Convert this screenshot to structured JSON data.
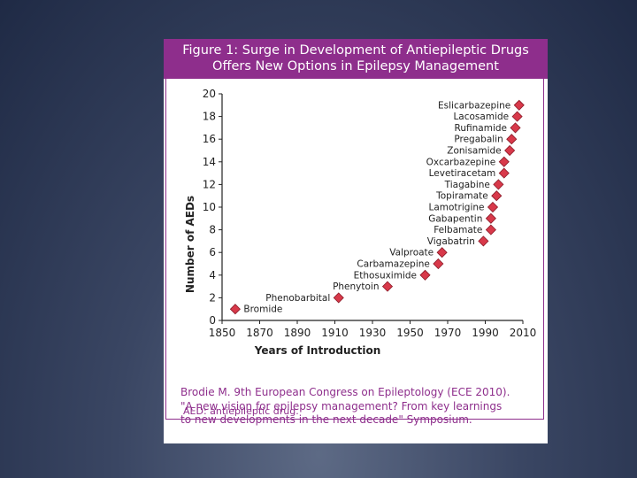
{
  "figure": {
    "title_line1": "Figure 1: Surge in Development of Antiepileptic Drugs",
    "title_line2": "Offers New Options in Epilepsy Management",
    "footnote": "AED: antiepileptic drug.",
    "citation_line1": "Brodie M. 9th European Congress on Epileptology (ECE 2010).",
    "citation_line2": "\"A new vision for epilepsy management? From key learnings",
    "citation_line3": "to new developments in the next decade\" Symposium."
  },
  "colors": {
    "header": "#8e2e8c",
    "marker_fill": "#d8394a",
    "marker_stroke": "#8a1a28"
  },
  "chart_data": {
    "type": "scatter",
    "title": "",
    "xlabel": "Years of Introduction",
    "ylabel": "Number of AEDs",
    "xlim": [
      1850,
      2010
    ],
    "ylim": [
      0,
      20
    ],
    "xticks": [
      1850,
      1870,
      1890,
      1910,
      1930,
      1950,
      1970,
      1990,
      2010
    ],
    "yticks": [
      0,
      2,
      4,
      6,
      8,
      10,
      12,
      14,
      16,
      18,
      20
    ],
    "points": [
      {
        "label": "Bromide",
        "x": 1857,
        "y": 1,
        "label_side": "right"
      },
      {
        "label": "Phenobarbital",
        "x": 1912,
        "y": 2,
        "label_side": "left"
      },
      {
        "label": "Phenytoin",
        "x": 1938,
        "y": 3,
        "label_side": "left"
      },
      {
        "label": "Ethosuximide",
        "x": 1958,
        "y": 4,
        "label_side": "left"
      },
      {
        "label": "Carbamazepine",
        "x": 1965,
        "y": 5,
        "label_side": "left"
      },
      {
        "label": "Valproate",
        "x": 1967,
        "y": 6,
        "label_side": "left"
      },
      {
        "label": "Vigabatrin",
        "x": 1989,
        "y": 7,
        "label_side": "left"
      },
      {
        "label": "Felbamate",
        "x": 1993,
        "y": 8,
        "label_side": "left"
      },
      {
        "label": "Gabapentin",
        "x": 1993,
        "y": 9,
        "label_side": "left"
      },
      {
        "label": "Lamotrigine",
        "x": 1994,
        "y": 10,
        "label_side": "left"
      },
      {
        "label": "Topiramate",
        "x": 1996,
        "y": 11,
        "label_side": "left"
      },
      {
        "label": "Tiagabine",
        "x": 1997,
        "y": 12,
        "label_side": "left"
      },
      {
        "label": "Levetiracetam",
        "x": 2000,
        "y": 13,
        "label_side": "left"
      },
      {
        "label": "Oxcarbazepine",
        "x": 2000,
        "y": 14,
        "label_side": "left"
      },
      {
        "label": "Zonisamide",
        "x": 2003,
        "y": 15,
        "label_side": "left"
      },
      {
        "label": "Pregabalin",
        "x": 2004,
        "y": 16,
        "label_side": "left"
      },
      {
        "label": "Rufinamide",
        "x": 2006,
        "y": 17,
        "label_side": "left"
      },
      {
        "label": "Lacosamide",
        "x": 2007,
        "y": 18,
        "label_side": "left"
      },
      {
        "label": "Eslicarbazepine",
        "x": 2008,
        "y": 19,
        "label_side": "left"
      }
    ]
  }
}
